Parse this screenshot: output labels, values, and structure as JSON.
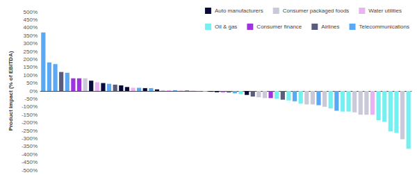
{
  "chart_data": {
    "type": "bar",
    "y_label": "Product impact (% of EBITDA)",
    "categories": [
      null,
      null,
      null,
      null,
      null,
      null,
      null,
      null,
      null,
      null,
      null,
      null,
      null,
      null,
      null,
      null,
      null,
      null,
      null,
      null,
      null,
      null,
      null,
      null,
      null,
      null,
      null,
      null,
      null,
      null,
      null,
      null,
      null,
      null,
      null,
      null,
      null,
      null,
      null,
      null,
      null,
      null,
      null,
      null,
      null,
      null,
      null,
      null,
      null,
      null,
      null,
      null,
      null,
      null,
      null,
      null,
      null,
      null,
      null,
      null,
      null,
      null
    ],
    "series": [
      {
        "name": "Auto manufacturers",
        "color": "#0b0b3b",
        "values": [
          null,
          null,
          null,
          null,
          null,
          null,
          null,
          null,
          65,
          null,
          50,
          null,
          null,
          35,
          25,
          null,
          null,
          18,
          null,
          10,
          null,
          null,
          null,
          null,
          2,
          null,
          null,
          null,
          -5,
          -8,
          null,
          null,
          null,
          null,
          -25,
          null,
          null,
          null,
          null,
          null,
          null,
          null,
          null,
          null,
          null,
          null,
          null,
          null,
          null,
          null,
          null,
          null,
          null,
          null,
          null,
          null,
          null,
          null,
          null,
          null,
          null,
          null
        ]
      },
      {
        "name": "Consumer packaged foods",
        "color": "#c9c9d9",
        "values": [
          null,
          null,
          null,
          null,
          null,
          null,
          null,
          80,
          null,
          null,
          null,
          null,
          null,
          null,
          null,
          null,
          null,
          null,
          null,
          null,
          5,
          null,
          null,
          null,
          null,
          null,
          null,
          null,
          null,
          null,
          null,
          null,
          null,
          null,
          null,
          null,
          -40,
          -45,
          null,
          null,
          null,
          null,
          null,
          null,
          -85,
          -85,
          null,
          -100,
          null,
          null,
          null,
          null,
          -135,
          -150,
          -150,
          null,
          null,
          null,
          null,
          null,
          -305,
          null
        ]
      },
      {
        "name": "Water utilities",
        "color": "#e9b3f2",
        "values": [
          null,
          null,
          null,
          null,
          null,
          null,
          null,
          null,
          null,
          55,
          null,
          null,
          null,
          null,
          null,
          20,
          null,
          null,
          null,
          null,
          null,
          5,
          null,
          3,
          null,
          2,
          null,
          -3,
          null,
          null,
          null,
          null,
          null,
          null,
          null,
          null,
          null,
          null,
          null,
          null,
          null,
          null,
          null,
          null,
          null,
          null,
          null,
          null,
          null,
          null,
          null,
          null,
          null,
          null,
          null,
          -150,
          null,
          null,
          null,
          null,
          null,
          null
        ]
      },
      {
        "name": "Oil & gas",
        "color": "#74f0f0",
        "values": [
          null,
          null,
          null,
          null,
          null,
          null,
          null,
          null,
          null,
          null,
          null,
          null,
          null,
          null,
          null,
          null,
          null,
          null,
          null,
          null,
          null,
          null,
          null,
          null,
          null,
          null,
          null,
          null,
          null,
          null,
          null,
          null,
          null,
          -20,
          null,
          null,
          null,
          null,
          null,
          -50,
          null,
          -60,
          null,
          -80,
          null,
          null,
          null,
          null,
          -110,
          null,
          -130,
          -130,
          null,
          null,
          null,
          null,
          -185,
          -195,
          -255,
          -265,
          null,
          -365
        ]
      },
      {
        "name": "Consumer finance",
        "color": "#a033e0",
        "values": [
          null,
          null,
          null,
          null,
          null,
          80,
          80,
          null,
          null,
          null,
          null,
          null,
          null,
          null,
          null,
          null,
          null,
          null,
          null,
          null,
          null,
          null,
          null,
          null,
          null,
          null,
          null,
          null,
          null,
          null,
          -8,
          null,
          null,
          null,
          null,
          null,
          null,
          null,
          -45,
          null,
          null,
          null,
          null,
          null,
          null,
          null,
          null,
          null,
          null,
          null,
          null,
          null,
          null,
          null,
          null,
          null,
          null,
          null,
          null,
          null,
          null,
          null
        ]
      },
      {
        "name": "Airlines",
        "color": "#5b5b7a",
        "values": [
          null,
          null,
          null,
          120,
          null,
          null,
          null,
          null,
          null,
          null,
          null,
          null,
          40,
          null,
          null,
          null,
          null,
          null,
          null,
          null,
          null,
          null,
          null,
          null,
          null,
          null,
          -3,
          null,
          null,
          null,
          null,
          -10,
          null,
          null,
          null,
          -35,
          null,
          null,
          null,
          null,
          -55,
          null,
          null,
          null,
          null,
          null,
          null,
          null,
          null,
          null,
          null,
          null,
          null,
          null,
          null,
          null,
          null,
          null,
          null,
          null,
          null,
          null
        ]
      },
      {
        "name": "Telecommunications",
        "color": "#5aa9f2",
        "values": [
          370,
          180,
          170,
          null,
          115,
          null,
          null,
          null,
          null,
          null,
          null,
          45,
          null,
          null,
          null,
          null,
          20,
          null,
          18,
          null,
          null,
          null,
          5,
          null,
          null,
          null,
          null,
          null,
          null,
          null,
          null,
          null,
          -15,
          null,
          null,
          null,
          null,
          null,
          null,
          null,
          null,
          null,
          -65,
          null,
          null,
          null,
          -90,
          null,
          null,
          -125,
          null,
          null,
          null,
          null,
          null,
          null,
          null,
          null,
          null,
          null,
          null,
          null
        ]
      }
    ],
    "ylim": [
      -500,
      500
    ],
    "yticks": [
      {
        "value": -500,
        "label": "-500%"
      },
      {
        "value": -450,
        "label": "-450%"
      },
      {
        "value": -400,
        "label": "-400%"
      },
      {
        "value": -350,
        "label": "-350%"
      },
      {
        "value": -300,
        "label": "-300%"
      },
      {
        "value": -250,
        "label": "-250%"
      },
      {
        "value": -200,
        "label": "-200%"
      },
      {
        "value": -150,
        "label": "-150%"
      },
      {
        "value": -100,
        "label": "-100%"
      },
      {
        "value": -50,
        "label": "-50%"
      },
      {
        "value": 0,
        "label": "0%"
      },
      {
        "value": 50,
        "label": "50%"
      },
      {
        "value": 100,
        "label": "100%"
      },
      {
        "value": 150,
        "label": "150%"
      },
      {
        "value": 200,
        "label": "200%"
      },
      {
        "value": 250,
        "label": "250%"
      },
      {
        "value": 300,
        "label": "300%"
      },
      {
        "value": 350,
        "label": "350%"
      },
      {
        "value": 400,
        "label": "400%"
      },
      {
        "value": 450,
        "label": "450%"
      },
      {
        "value": 500,
        "label": "500%"
      }
    ],
    "stacked": true,
    "grid": false,
    "legend": "top right",
    "tick_labels": "y"
  }
}
